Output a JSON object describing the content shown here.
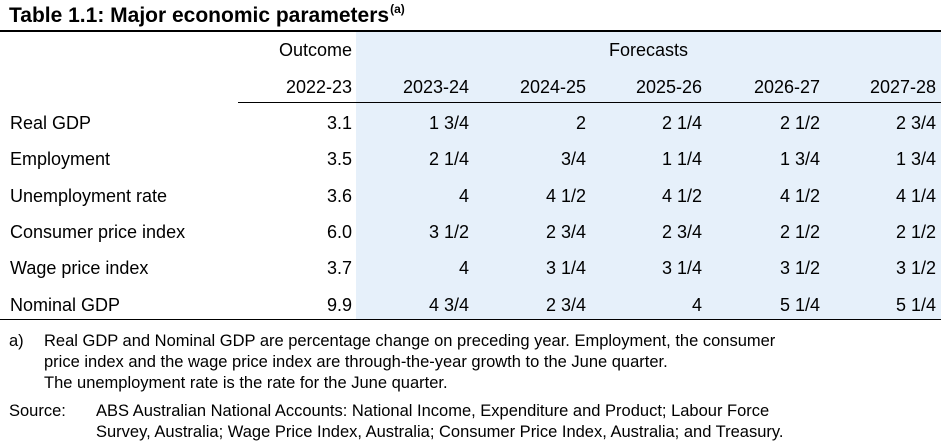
{
  "title": "Table 1.1: Major economic parameters",
  "title_marker": "(a)",
  "group_headers": {
    "outcome": "Outcome",
    "forecasts": "Forecasts"
  },
  "years": [
    "2022-23",
    "2023-24",
    "2024-25",
    "2025-26",
    "2026-27",
    "2027-28"
  ],
  "rows": [
    {
      "label": "Real GDP",
      "values": [
        "3.1",
        "1 3/4",
        "2",
        "2 1/4",
        "2 1/2",
        "2 3/4"
      ]
    },
    {
      "label": "Employment",
      "values": [
        "3.5",
        "2 1/4",
        "3/4",
        "1 1/4",
        "1 3/4",
        "1 3/4"
      ]
    },
    {
      "label": "Unemployment rate",
      "values": [
        "3.6",
        "4",
        "4 1/2",
        "4 1/2",
        "4 1/2",
        "4 1/4"
      ]
    },
    {
      "label": "Consumer price index",
      "values": [
        "6.0",
        "3 1/2",
        "2 3/4",
        "2 3/4",
        "2 1/2",
        "2 1/2"
      ]
    },
    {
      "label": "Wage price index",
      "values": [
        "3.7",
        "4",
        "3 1/4",
        "3 1/4",
        "3 1/2",
        "3 1/2"
      ]
    },
    {
      "label": "Nominal GDP",
      "values": [
        "9.9",
        "4 3/4",
        "2 3/4",
        "4",
        "5 1/4",
        "5 1/4"
      ]
    }
  ],
  "footnote": {
    "marker": "a)",
    "lines": [
      "Real GDP and Nominal GDP are percentage change on preceding year. Employment, the consumer",
      "price index and the wage price index are through-the-year growth to the June quarter.",
      "The unemployment rate is the rate for the June quarter."
    ]
  },
  "source": {
    "label": "Source:",
    "lines": [
      "ABS Australian National Accounts: National Income, Expenditure and Product; Labour Force",
      "Survey, Australia; Wage Price Index, Australia; Consumer Price Index, Australia; and Treasury."
    ]
  },
  "colors": {
    "forecast_shading": "#e6f0fa",
    "rule": "#000000"
  }
}
